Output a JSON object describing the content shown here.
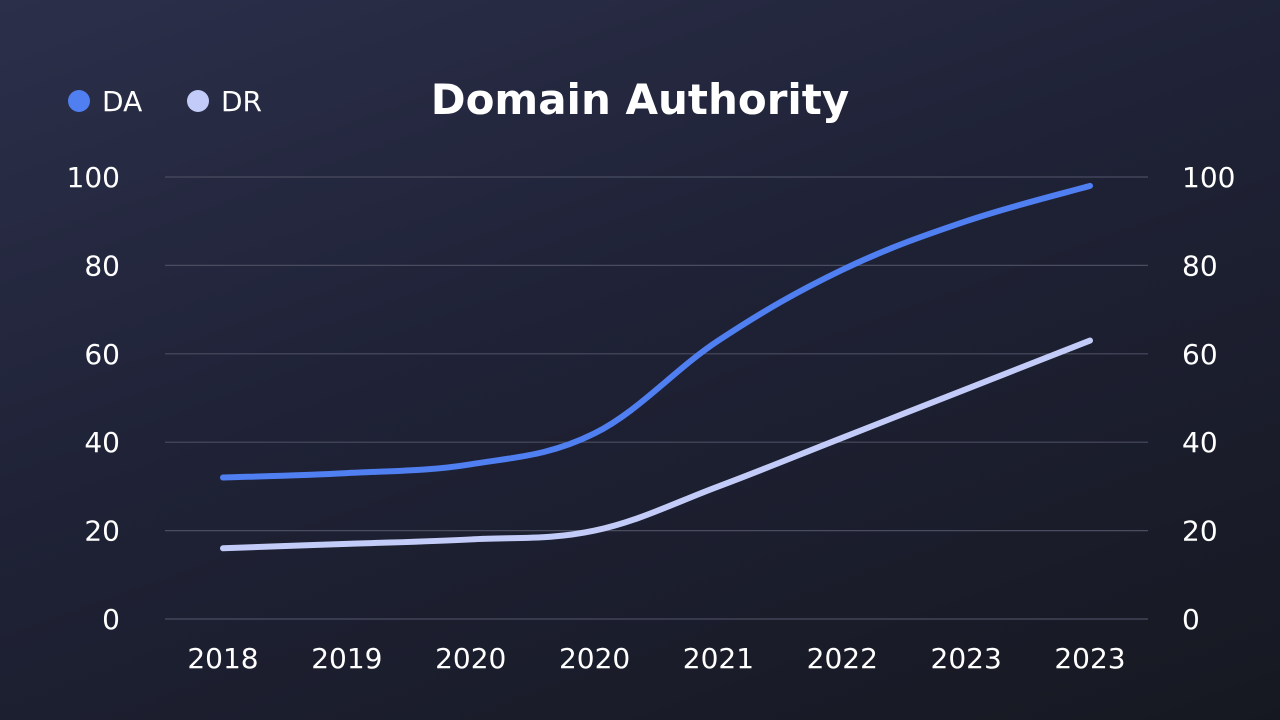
{
  "chart_data": {
    "type": "line",
    "title": "Domain Authority",
    "categories": [
      "2018",
      "2019",
      "2020",
      "2020",
      "2021",
      "2022",
      "2023",
      "2023"
    ],
    "series": [
      {
        "name": "DA",
        "color": "#4f7ff0",
        "values": [
          32,
          33,
          35,
          42,
          63,
          79,
          90,
          98
        ]
      },
      {
        "name": "DR",
        "color": "#c3ccf8",
        "values": [
          16,
          17,
          18,
          20,
          30,
          41,
          52,
          63
        ]
      }
    ],
    "ylim": [
      0,
      100
    ],
    "yticks": [
      "0",
      "20",
      "40",
      "60",
      "80",
      "100"
    ],
    "ytick_values": [
      0,
      20,
      40,
      60,
      80,
      100
    ],
    "grid": true,
    "legend_position": "top-left",
    "dual_y_axis": true
  }
}
